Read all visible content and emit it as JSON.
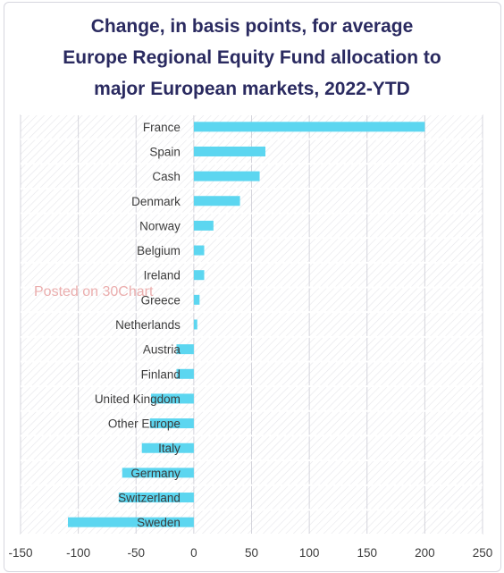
{
  "chart_data": {
    "type": "bar",
    "orientation": "horizontal",
    "title_lines": [
      "Change, in basis points, for average",
      "Europe Regional Equity Fund allocation to",
      "major European markets, 2022-YTD"
    ],
    "categories": [
      "France",
      "Spain",
      "Cash",
      "Denmark",
      "Norway",
      "Belgium",
      "Ireland",
      "Greece",
      "Netherlands",
      "Austria",
      "Finland",
      "United Kingdom",
      "Other Europe",
      "Italy",
      "Germany",
      "Switzerland",
      "Sweden"
    ],
    "values": [
      200,
      62,
      57,
      40,
      17,
      9,
      9,
      5,
      3,
      -15,
      -15,
      -37,
      -38,
      -45,
      -62,
      -65,
      -109
    ],
    "xlim": [
      -150,
      250
    ],
    "xticks": [
      -150,
      -100,
      -50,
      0,
      50,
      100,
      150,
      200,
      250
    ],
    "xlabel": "",
    "ylabel": "",
    "grid": true,
    "bar_color": "#5cd6f0"
  },
  "watermark": "Posted on 30Chart"
}
